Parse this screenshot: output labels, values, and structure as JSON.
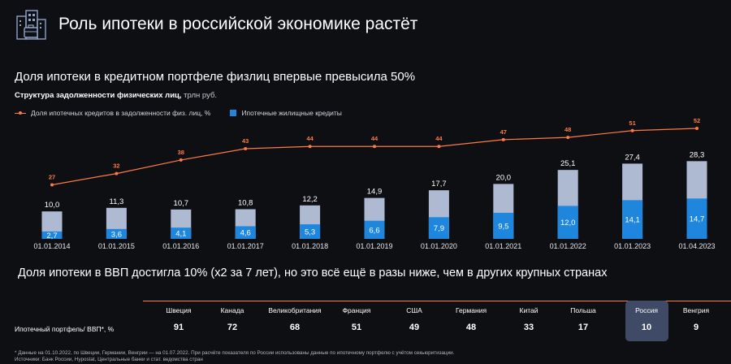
{
  "header": {
    "title": "Роль ипотеки в российской экономике растёт",
    "logo_icon": "buildings-briefcase-icon"
  },
  "section1": {
    "heading": "Доля ипотеки в кредитном портфеле физлиц впервые превысила 50%",
    "subtitle_bold": "Структура задолженности физических лиц,",
    "subtitle_unit": " трлн руб."
  },
  "chart_data": {
    "type": "bar",
    "categories": [
      "01.01.2014",
      "01.01.2015",
      "01.01.2016",
      "01.01.2017",
      "01.01.2018",
      "01.01.2019",
      "01.01.2020",
      "01.01.2021",
      "01.01.2022",
      "01.01.2023",
      "01.04.2023"
    ],
    "series": [
      {
        "name": "Ипотечные жилищные кредиты",
        "type": "bar",
        "values": [
          2.7,
          3.6,
          4.1,
          4.6,
          5.3,
          6.6,
          7.9,
          9.5,
          12.0,
          14.1,
          14.7
        ],
        "labels": [
          "2,7",
          "3,6",
          "4,1",
          "4,6",
          "5,3",
          "6,6",
          "7,9",
          "9,5",
          "12,0",
          "14,1",
          "14,7"
        ],
        "color": "#1e86dc"
      },
      {
        "name": "",
        "type": "bar",
        "role": "total",
        "values": [
          10.0,
          11.3,
          10.7,
          10.8,
          12.2,
          14.9,
          17.7,
          20.0,
          25.1,
          27.4,
          28.3
        ],
        "labels": [
          "10,0",
          "11,3",
          "10,7",
          "10,8",
          "12,2",
          "14,9",
          "17,7",
          "20,0",
          "25,1",
          "27,4",
          "28,3"
        ],
        "color": "#aebad2"
      },
      {
        "name": "Доля ипотечных кредитов в задолженности физ. лиц, %",
        "type": "line",
        "values": [
          27,
          32,
          38,
          43,
          44,
          44,
          44,
          47,
          48,
          51,
          52
        ],
        "labels": [
          "27",
          "32",
          "38",
          "43",
          "44",
          "44",
          "44",
          "47",
          "48",
          "51",
          "52"
        ],
        "color": "#ff7a45"
      }
    ],
    "legend": "top-left"
  },
  "section2": {
    "heading": "Доля ипотеки в ВВП достигла 10% (х2 за 7 лет), но это всё ещё в разы ниже, чем в других крупных странах",
    "row_label": "Ипотечный портфель/ ВВП*, %",
    "highlight_color": "#3f4b66",
    "countries": [
      {
        "name": "Швеция",
        "value": "91"
      },
      {
        "name": "Канада",
        "value": "72"
      },
      {
        "name": "Великобритания",
        "value": "68"
      },
      {
        "name": "Франция",
        "value": "51"
      },
      {
        "name": "США",
        "value": "49"
      },
      {
        "name": "Германия",
        "value": "48"
      },
      {
        "name": "Китай",
        "value": "33"
      },
      {
        "name": "Польша",
        "value": "17"
      },
      {
        "name": "Россия",
        "value": "10"
      },
      {
        "name": "Венгрия",
        "value": "9"
      }
    ]
  },
  "footnotes": {
    "note": "* Данные на 01.10.2022, по Швеции, Германии, Венгрии — на 01.07.2022. При расчёте показателя по России использованы данные по ипотечному портфелю с учётом секьюритизации.",
    "sources": "Источники: Банк России, Hypostat, Центральные банки и стат. ведомства стран"
  }
}
